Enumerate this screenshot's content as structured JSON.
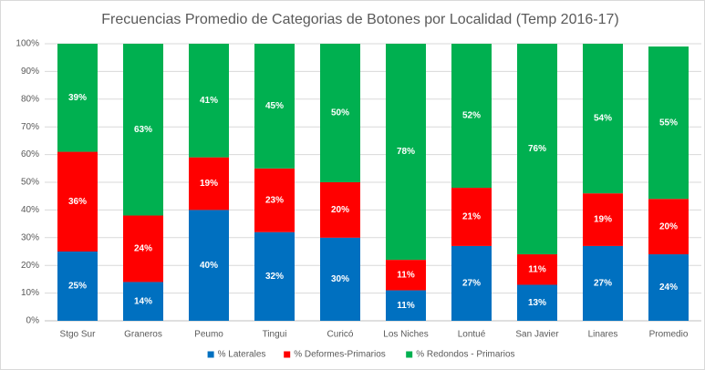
{
  "chart_data": {
    "type": "stacked_bar",
    "title": "Frecuencias Promedio de Categorias de Botones por Localidad (Temp 2016-17)",
    "categories": [
      "Stgo Sur",
      "Graneros",
      "Peumo",
      "Tingui",
      "Curicó",
      "Los Niches",
      "Lontué",
      "San Javier",
      "Linares",
      "Promedio"
    ],
    "series": [
      {
        "name": "% Laterales",
        "color": "#0070c0",
        "values": [
          25,
          14,
          40,
          32,
          30,
          11,
          27,
          13,
          27,
          24
        ],
        "value_labels": [
          "25%",
          "14%",
          "40%",
          "32%",
          "30%",
          "11%",
          "27%",
          "13%",
          "27%",
          "24%"
        ]
      },
      {
        "name": "% Deformes-Primarios",
        "color": "#ff0000",
        "values": [
          36,
          24,
          19,
          23,
          20,
          11,
          21,
          11,
          19,
          20
        ],
        "value_labels": [
          "36%",
          "24%",
          "19%",
          "23%",
          "20%",
          "11%",
          "21%",
          "11%",
          "19%",
          "20%"
        ]
      },
      {
        "name": "% Redondos - Primarios",
        "color": "#00b050",
        "values": [
          39,
          63,
          41,
          45,
          50,
          78,
          52,
          76,
          54,
          55
        ],
        "value_labels": [
          "39%",
          "63%",
          "41%",
          "45%",
          "50%",
          "78%",
          "52%",
          "76%",
          "54%",
          "55%"
        ]
      }
    ],
    "ylim": [
      0,
      100
    ],
    "yticks": [
      {
        "value": 0,
        "label": "0%"
      },
      {
        "value": 10,
        "label": "10%"
      },
      {
        "value": 20,
        "label": "20%"
      },
      {
        "value": 30,
        "label": "30%"
      },
      {
        "value": 40,
        "label": "40%"
      },
      {
        "value": 50,
        "label": "50%"
      },
      {
        "value": 60,
        "label": "60%"
      },
      {
        "value": 70,
        "label": "70%"
      },
      {
        "value": 80,
        "label": "80%"
      },
      {
        "value": 90,
        "label": "90%"
      },
      {
        "value": 100,
        "label": "100%"
      }
    ],
    "grid": true,
    "legend": "bottom"
  }
}
